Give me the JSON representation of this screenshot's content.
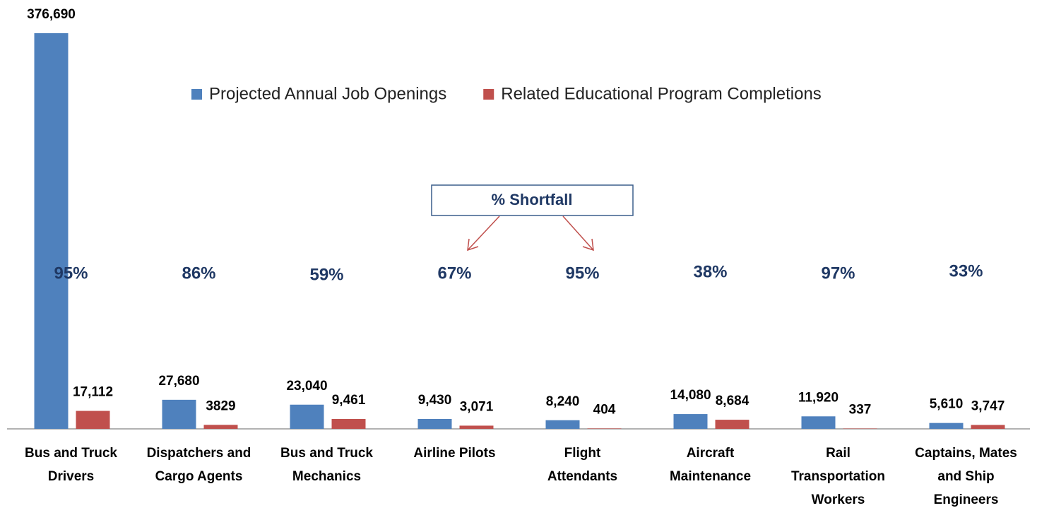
{
  "chart_data": {
    "type": "bar",
    "categories": [
      [
        "Bus and Truck",
        "Drivers"
      ],
      [
        "Dispatchers and",
        "Cargo Agents"
      ],
      [
        "Bus and Truck",
        "Mechanics"
      ],
      [
        "Airline Pilots"
      ],
      [
        "Flight",
        "Attendants"
      ],
      [
        "Aircraft",
        "Maintenance"
      ],
      [
        "Rail",
        "Transportation",
        "Workers"
      ],
      [
        "Captains, Mates",
        "and Ship",
        "Engineers"
      ]
    ],
    "series": [
      {
        "name": "Projected Annual Job Openings",
        "color": "#4f81bd",
        "values": [
          376690,
          27680,
          23040,
          9430,
          8240,
          14080,
          11920,
          5610
        ],
        "value_labels": [
          "376,690",
          "27,680",
          "23,040",
          "9,430",
          "8,240",
          "14,080",
          "11,920",
          "5,610"
        ]
      },
      {
        "name": "Related Educational Program Completions",
        "color": "#c0504d",
        "values": [
          17112,
          3829,
          9461,
          3071,
          404,
          8684,
          337,
          3747
        ],
        "value_labels": [
          "17,112",
          "3829",
          "9,461",
          "3,071",
          "404",
          "8,684",
          "337",
          "3,747"
        ]
      }
    ],
    "shortfall": {
      "label": "% Shortfall",
      "values": [
        95,
        86,
        59,
        67,
        95,
        38,
        97,
        33
      ],
      "value_labels": [
        "95%",
        "86%",
        "59%",
        "67%",
        "95%",
        "38%",
        "97%",
        "33%"
      ]
    },
    "legend": "top"
  }
}
